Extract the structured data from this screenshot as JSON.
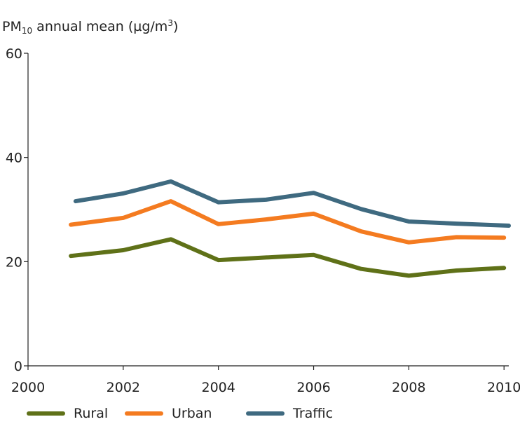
{
  "chart_data": {
    "type": "line",
    "ylabel": {
      "prefix": "PM",
      "sub": "10",
      "middle": " annual mean (µg/m",
      "sup": "3",
      "suffix": ")"
    },
    "xlabel": "",
    "x": [
      2001,
      2002,
      2003,
      2004,
      2005,
      2006,
      2007,
      2008,
      2009,
      2010
    ],
    "xlim": [
      2000,
      2010.1
    ],
    "ylim": [
      0,
      60
    ],
    "xticks": [
      "2000",
      "2002",
      "2004",
      "2006",
      "2008",
      "2010"
    ],
    "yticks": [
      "0",
      "20",
      "40",
      "60"
    ],
    "grid": false,
    "legend_position": "bottom",
    "series": [
      {
        "name": "Rural",
        "color": "#5f7118",
        "x": [
          2000.9,
          2002,
          2003,
          2004,
          2005,
          2006,
          2007,
          2008,
          2009,
          2010
        ],
        "values": [
          21.1,
          22.2,
          24.3,
          20.3,
          20.8,
          21.3,
          18.6,
          17.3,
          18.3,
          18.8
        ]
      },
      {
        "name": "Urban",
        "color": "#f47b20",
        "x": [
          2000.9,
          2002,
          2003,
          2004,
          2005,
          2006,
          2007,
          2008,
          2009,
          2010
        ],
        "values": [
          27.1,
          28.4,
          31.6,
          27.2,
          28.1,
          29.2,
          25.8,
          23.7,
          24.7,
          24.6
        ]
      },
      {
        "name": "Traffic",
        "color": "#3f6a80",
        "x": [
          2001,
          2002,
          2003,
          2004,
          2005,
          2006,
          2007,
          2008,
          2009,
          2010.1
        ],
        "values": [
          31.6,
          33.1,
          35.4,
          31.4,
          31.9,
          33.2,
          30.1,
          27.7,
          27.3,
          26.9
        ]
      }
    ]
  }
}
